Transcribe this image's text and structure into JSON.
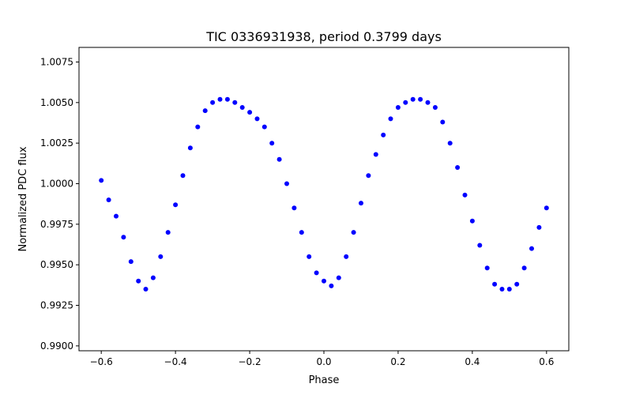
{
  "chart_data": {
    "type": "scatter",
    "title": "TIC 0336931938, period 0.3799 days",
    "xlabel": "Phase",
    "ylabel": "Normalized PDC flux",
    "xlim": [
      -0.66,
      0.66
    ],
    "ylim": [
      0.9897,
      1.0084
    ],
    "x_ticks": [
      -0.6,
      -0.4,
      -0.2,
      0.0,
      0.2,
      0.4,
      0.6
    ],
    "x_tick_labels": [
      "−0.6",
      "−0.4",
      "−0.2",
      "0.0",
      "0.2",
      "0.4",
      "0.6"
    ],
    "y_ticks": [
      0.99,
      0.9925,
      0.995,
      0.9975,
      1.0,
      1.0025,
      1.005,
      1.0075
    ],
    "y_tick_labels": [
      "0.9900",
      "0.9925",
      "0.9950",
      "0.9975",
      "1.0000",
      "1.0025",
      "1.0050",
      "1.0075"
    ],
    "grid": false,
    "legend": "none",
    "marker_color": "#0000ff",
    "series": [
      {
        "x": [
          -0.6,
          -0.58,
          -0.56,
          -0.54,
          -0.52,
          -0.5,
          -0.48,
          -0.46,
          -0.44,
          -0.42,
          -0.4,
          -0.38,
          -0.36,
          -0.34,
          -0.32,
          -0.3,
          -0.28,
          -0.26,
          -0.24,
          -0.22,
          -0.2,
          -0.18,
          -0.16,
          -0.14,
          -0.12,
          -0.1,
          -0.08,
          -0.06,
          -0.04,
          -0.02,
          0.0,
          0.02,
          0.04,
          0.06,
          0.08,
          0.1,
          0.12,
          0.14,
          0.16,
          0.18,
          0.2,
          0.22,
          0.24,
          0.26,
          0.28,
          0.3,
          0.32,
          0.34,
          0.36,
          0.38,
          0.4,
          0.42,
          0.44,
          0.46,
          0.48,
          0.5,
          0.52,
          0.54,
          0.56,
          0.58,
          0.6
        ],
        "y": [
          1.0002,
          0.999,
          0.998,
          0.9967,
          0.9952,
          0.994,
          0.9935,
          0.9942,
          0.9955,
          0.997,
          0.9987,
          1.0005,
          1.0022,
          1.0035,
          1.0045,
          1.005,
          1.0052,
          1.0052,
          1.005,
          1.0047,
          1.0044,
          1.004,
          1.0035,
          1.0025,
          1.0015,
          1.0,
          0.9985,
          0.997,
          0.9955,
          0.9945,
          0.994,
          0.9937,
          0.9942,
          0.9955,
          0.997,
          0.9988,
          1.0005,
          1.0018,
          1.003,
          1.004,
          1.0047,
          1.005,
          1.0052,
          1.0052,
          1.005,
          1.0047,
          1.0038,
          1.0025,
          1.001,
          0.9993,
          0.9977,
          0.9962,
          0.9948,
          0.9938,
          0.9935,
          0.9935,
          0.9938,
          0.9948,
          0.996,
          0.9973,
          0.9985
        ]
      }
    ]
  }
}
